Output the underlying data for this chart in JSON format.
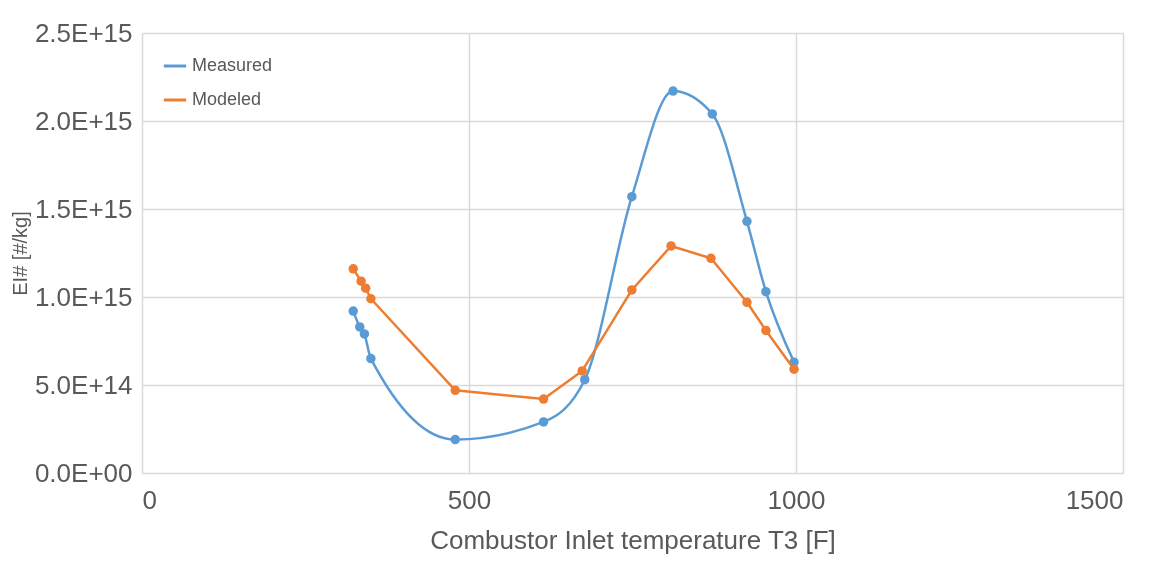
{
  "chart_data": {
    "type": "line",
    "xlabel": "Combustor Inlet temperature T3 [F]",
    "ylabel": "EI# [#/kg]",
    "xlim": [
      0,
      1500
    ],
    "xticks": [
      0,
      500,
      1000,
      1500
    ],
    "ylim": [
      0,
      2500000000000000.0
    ],
    "yticks": [
      {
        "value": 0,
        "label": "0.0E+00"
      },
      {
        "value": 500000000000000.0,
        "label": "5.0E+14"
      },
      {
        "value": 1000000000000000.0,
        "label": "1.0E+15"
      },
      {
        "value": 1500000000000000.0,
        "label": "1.5E+15"
      },
      {
        "value": 2000000000000000.0,
        "label": "2.0E+15"
      },
      {
        "value": 2500000000000000.0,
        "label": "2.5E+15"
      }
    ],
    "grid": true,
    "legend": "top left",
    "marker": "circle",
    "line_style": "solid",
    "series": [
      {
        "name": "Measured",
        "color": "#5b9bd5",
        "x": [
          323,
          333,
          340,
          350,
          479,
          614,
          677,
          749,
          812,
          872,
          925,
          954,
          997
        ],
        "values": [
          920000000000000.0,
          830000000000000.0,
          790000000000000.0,
          650000000000000.0,
          190000000000000.0,
          290000000000000.0,
          530000000000000.0,
          1570000000000000.0,
          2170000000000000.0,
          2040000000000000.0,
          1430000000000000.0,
          1030000000000000.0,
          630000000000000.0
        ]
      },
      {
        "name": "Modeled",
        "color": "#ed7d31",
        "x": [
          323,
          335,
          342,
          350,
          479,
          614,
          673,
          749,
          809,
          870,
          925,
          954,
          997
        ],
        "values": [
          1160000000000000.0,
          1090000000000000.0,
          1050000000000000.0,
          990000000000000.0,
          470000000000000.0,
          420000000000000.0,
          580000000000000.0,
          1040000000000000.0,
          1290000000000000.0,
          1220000000000000.0,
          970000000000000.0,
          810000000000000.0,
          590000000000000.0
        ]
      }
    ]
  }
}
